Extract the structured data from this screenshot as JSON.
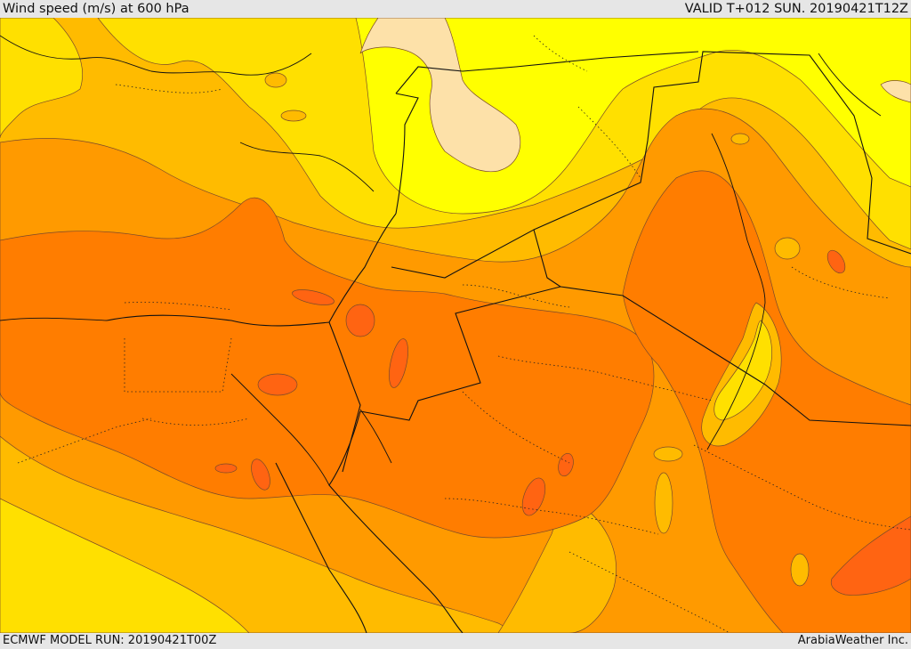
{
  "header": {
    "title": "Wind speed (m/s) at 600 hPa",
    "valid": "VALID T+012 SUN. 20190421T12Z"
  },
  "footer": {
    "model_run": "ECMWF MODEL RUN: 20190421T00Z",
    "credit": "ArabiaWeather Inc."
  },
  "colors": {
    "light_wheat": "#fde1a9",
    "bright_yellow": "#ffff00",
    "yellow": "#ffe000",
    "amber": "#ffbb00",
    "orange": "#ff9a00",
    "dark_orange": "#ff7d00",
    "red_orange": "#ff6412",
    "border": "#222222"
  }
}
